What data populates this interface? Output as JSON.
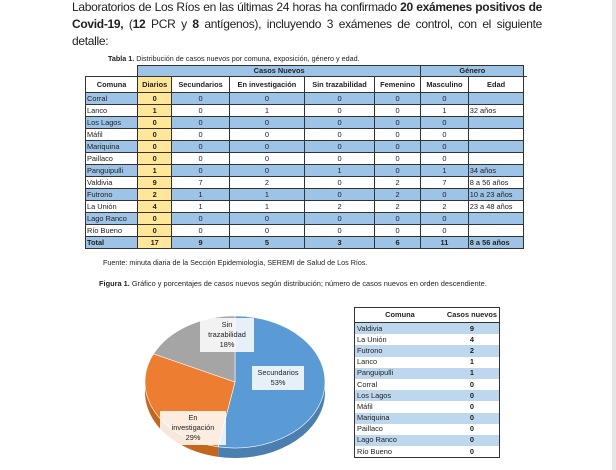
{
  "intro": {
    "line1": "El Secretario Regional Ministerial de Salud, Dr. Keith Hood, informó que la Red de Laboratorios de Los Ríos en las últimas 24 horas ha confirmado ",
    "bold1": "20 exámenes positivos de Covid-19,",
    "mid": " (",
    "bold2": "12",
    "mid2": " PCR y ",
    "bold3": "8",
    "end": " antígenos), incluyendo 3 exámenes de control, con el siguiente detalle:"
  },
  "table1": {
    "caption_bold": "Tabla 1.",
    "caption": " Distribución de casos nuevos por comuna, exposición, género y edad.",
    "group_headers": [
      "Casos Nuevos",
      "Género"
    ],
    "headers": [
      "Comuna",
      "Diarios",
      "Secundarios",
      "En investigación",
      "Sin trazabilidad",
      "Femenino",
      "Masculino",
      "Edad"
    ],
    "rows": [
      [
        "Corral",
        "0",
        "0",
        "0",
        "0",
        "0",
        "0",
        ""
      ],
      [
        "Lanco",
        "1",
        "0",
        "1",
        "0",
        "0",
        "1",
        "32 años"
      ],
      [
        "Los Lagos",
        "0",
        "0",
        "0",
        "0",
        "0",
        "0",
        ""
      ],
      [
        "Máfil",
        "0",
        "0",
        "0",
        "0",
        "0",
        "0",
        ""
      ],
      [
        "Mariquina",
        "0",
        "0",
        "0",
        "0",
        "0",
        "0",
        ""
      ],
      [
        "Paillaco",
        "0",
        "0",
        "0",
        "0",
        "0",
        "0",
        ""
      ],
      [
        "Panguipulli",
        "1",
        "0",
        "0",
        "1",
        "0",
        "1",
        "34 años"
      ],
      [
        "Valdivia",
        "9",
        "7",
        "2",
        "0",
        "2",
        "7",
        "8 a 56 años"
      ],
      [
        "Futrono",
        "2",
        "1",
        "1",
        "0",
        "2",
        "0",
        "10 a 23 años"
      ],
      [
        "La Unión",
        "4",
        "1",
        "1",
        "2",
        "2",
        "2",
        "23 a 48 años"
      ],
      [
        "Lago Ranco",
        "0",
        "0",
        "0",
        "0",
        "0",
        "0",
        ""
      ],
      [
        "Río Bueno",
        "0",
        "0",
        "0",
        "0",
        "0",
        "0",
        ""
      ]
    ],
    "total": [
      "Total",
      "17",
      "9",
      "5",
      "3",
      "6",
      "11",
      "8 a 56 años"
    ],
    "source": "Fuente: minuta diaria de la Sección Epidemiología, SEREMI de Salud de Los Ríos."
  },
  "figure": {
    "caption_bold": "Figura 1.",
    "caption": " Gráfico y porcentajes de casos nuevos según distribución; número de casos nuevos en orden descendiente."
  },
  "chart_data": {
    "type": "pie",
    "categories": [
      "Secundarios",
      "En investigación",
      "Sin trazabilidad"
    ],
    "values": [
      53,
      29,
      18
    ],
    "labels": [
      "53%",
      "29%",
      "18%"
    ],
    "colors": [
      "#5b9bd5",
      "#ed7d31",
      "#a5a5a5"
    ]
  },
  "table2": {
    "headers": [
      "Comuna",
      "Casos nuevos"
    ],
    "rows": [
      [
        "Valdivia",
        "9"
      ],
      [
        "La Unión",
        "4"
      ],
      [
        "Futrono",
        "2"
      ],
      [
        "Lanco",
        "1"
      ],
      [
        "Panguipulli",
        "1"
      ],
      [
        "Corral",
        "0"
      ],
      [
        "Los Lagos",
        "0"
      ],
      [
        "Máfil",
        "0"
      ],
      [
        "Mariquina",
        "0"
      ],
      [
        "Paillaco",
        "0"
      ],
      [
        "Lago Ranco",
        "0"
      ],
      [
        "Río Bueno",
        "0"
      ]
    ]
  }
}
